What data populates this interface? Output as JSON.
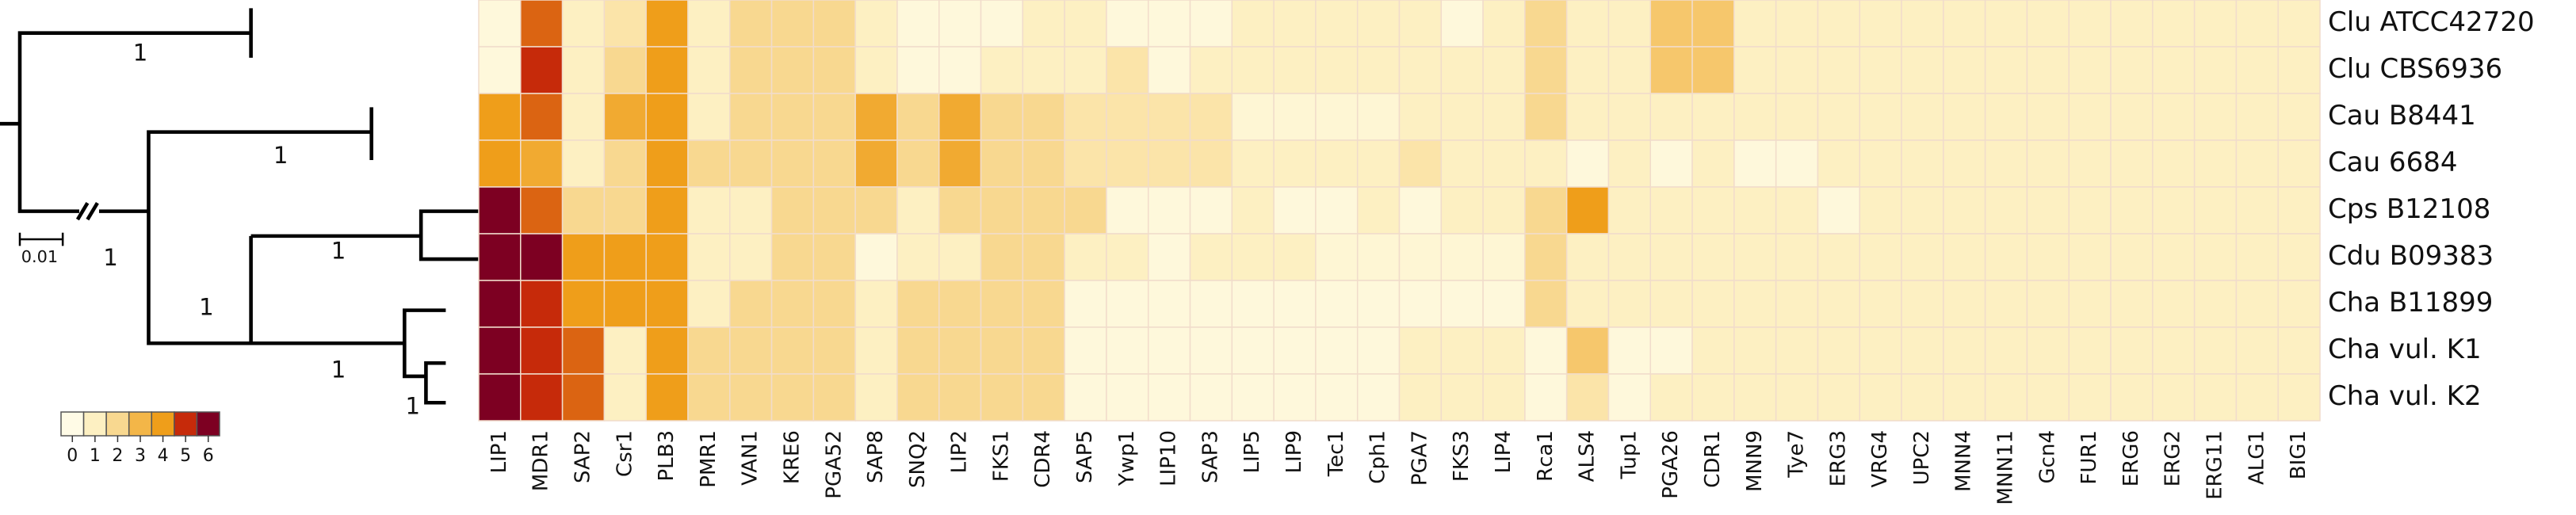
{
  "chart_data": {
    "type": "heatmap",
    "columns": [
      "LIP1",
      "MDR1",
      "SAP2",
      "Csr1",
      "PLB3",
      "PMR1",
      "VAN1",
      "KRE6",
      "PGA52",
      "SAP8",
      "SNQ2",
      "LIP2",
      "FKS1",
      "CDR4",
      "SAP5",
      "Ywp1",
      "LIP10",
      "SAP3",
      "LIP5",
      "LIP9",
      "Tec1",
      "Cph1",
      "PGA7",
      "FKS3",
      "LIP4",
      "Rca1",
      "ALS4",
      "Tup1",
      "PGA26",
      "CDR1",
      "MNN9",
      "Tye7",
      "ERG3",
      "VRG4",
      "UPC2",
      "MNN4",
      "MNN11",
      "Gcn4",
      "FUR1",
      "ERG6",
      "ERG2",
      "ERG11",
      "ALG1",
      "BIG1"
    ],
    "rows": [
      "Clu ATCC42720",
      "Clu CBS6936",
      "Cau B8441",
      "Cau 6684",
      "Cps B12108",
      "Cdu B09383",
      "Cha B11899",
      "Cha vul. K1",
      "Cha vul. K2"
    ],
    "values": [
      [
        0.3,
        4.5,
        1,
        1.5,
        4,
        1,
        2,
        2,
        2,
        1,
        0.3,
        0.3,
        0.3,
        1,
        1,
        0.3,
        0.3,
        0.3,
        1,
        1,
        1,
        1,
        1,
        0.3,
        1,
        2,
        1,
        1,
        2.5,
        2.5,
        1,
        1,
        1,
        1,
        1,
        1,
        1,
        1,
        1,
        1,
        1,
        1,
        1,
        1
      ],
      [
        0.3,
        5,
        1,
        2,
        4,
        1,
        2,
        2,
        2,
        1,
        0.3,
        0.3,
        1,
        1,
        1,
        1.5,
        0.3,
        1,
        1,
        1,
        1,
        1,
        1,
        1,
        1,
        2,
        1,
        1,
        2.5,
        2.5,
        1,
        1,
        1,
        1,
        1,
        1,
        1,
        1,
        1,
        1,
        1,
        1,
        1,
        1
      ],
      [
        4,
        4.5,
        1,
        3.5,
        4,
        1,
        2,
        2,
        2,
        3.5,
        2,
        3.5,
        2,
        2,
        1.5,
        1.5,
        1.5,
        1.5,
        0.5,
        0.5,
        0.5,
        0.5,
        1,
        1,
        1,
        2,
        1,
        1,
        1,
        1,
        1,
        1,
        1,
        1,
        1,
        1,
        1,
        1,
        1,
        1,
        1,
        1,
        1,
        1
      ],
      [
        4,
        3.5,
        1,
        2,
        4,
        2,
        2,
        2,
        2,
        3.5,
        2,
        3.5,
        2,
        2,
        1.5,
        1.5,
        1.5,
        1.5,
        1,
        1,
        1,
        1,
        1.5,
        1,
        1,
        1,
        0.3,
        1,
        0.3,
        1,
        0.3,
        0.3,
        1,
        1,
        1,
        1,
        1,
        1,
        1,
        1,
        1,
        1,
        1,
        1
      ],
      [
        6,
        4.5,
        2,
        2,
        4,
        1,
        1,
        2,
        2,
        2,
        1,
        2,
        2,
        2,
        2,
        0.3,
        0.3,
        0.3,
        1,
        0.3,
        0.3,
        1,
        0.3,
        1,
        1,
        2,
        4,
        1,
        1,
        1,
        1,
        1,
        0.3,
        1,
        1,
        1,
        1,
        1,
        1,
        1,
        1,
        1,
        1,
        1
      ],
      [
        6,
        6,
        4,
        4,
        4,
        1,
        1,
        2,
        2,
        0.3,
        1,
        1,
        2,
        2,
        1,
        1,
        0.3,
        1,
        1,
        1,
        0.5,
        0.5,
        0.5,
        0.5,
        0.5,
        2,
        1,
        1,
        1,
        1,
        1,
        1,
        1,
        1,
        1,
        1,
        1,
        1,
        1,
        1,
        1,
        1,
        1,
        1
      ],
      [
        6,
        5,
        4,
        4,
        4,
        1,
        2,
        2,
        2,
        1,
        2,
        2,
        2,
        2,
        0.3,
        0.3,
        0.3,
        0.3,
        0.3,
        0.3,
        0.3,
        0.3,
        0.3,
        0.3,
        0.3,
        2,
        1,
        1,
        1,
        1,
        1,
        1,
        1,
        1,
        1,
        1,
        1,
        1,
        1,
        1,
        1,
        1,
        1,
        1
      ],
      [
        6,
        5,
        4.5,
        1,
        4,
        2,
        2,
        2,
        2,
        1,
        2,
        2,
        2,
        2,
        0.3,
        0.3,
        0.3,
        0.3,
        0.3,
        0.3,
        0.3,
        0.3,
        1,
        1,
        1,
        0.3,
        2.5,
        0.3,
        0.3,
        1,
        1,
        1,
        1,
        1,
        1,
        1,
        1,
        1,
        1,
        1,
        1,
        1,
        1,
        1
      ],
      [
        6,
        5,
        4.5,
        1,
        4,
        2,
        2,
        2,
        2,
        1,
        2,
        2,
        2,
        2,
        0.3,
        0.3,
        0.3,
        0.3,
        0.3,
        0.3,
        0.3,
        0.3,
        1,
        1,
        1,
        0.3,
        1.5,
        0.3,
        1,
        1,
        1,
        1,
        1,
        1,
        1,
        1,
        1,
        1,
        1,
        1,
        1,
        1,
        1,
        1
      ]
    ],
    "colorscale": [
      "#fffbe6",
      "#fdf0c2",
      "#f8d890",
      "#f3b648",
      "#ef9e1a",
      "#c62a0a",
      "#7d0022"
    ],
    "clim": [
      0,
      6
    ],
    "legend_ticks": [
      0,
      1,
      2,
      3,
      4,
      5,
      6
    ]
  },
  "tree": {
    "branch_labels": [
      "1",
      "1",
      "1",
      "1",
      "1",
      "1",
      "1"
    ],
    "scale_label": "0.01"
  }
}
